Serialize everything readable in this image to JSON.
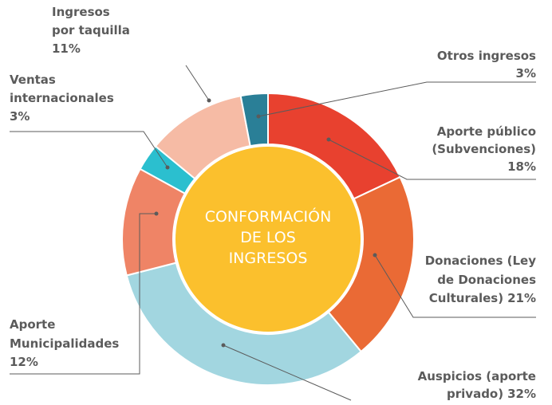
{
  "chart_data": {
    "type": "donut",
    "title": "CONFORMACIÓN DE LOS INGRESOS",
    "categories": [
      "Aporte público (Subvenciones)",
      "Donaciones (Ley de Donaciones Culturales)",
      "Auspicios (aporte privado)",
      "Aporte Municipalidades",
      "Ventas internacionales",
      "Ingresos por taquilla",
      "Otros ingresos"
    ],
    "values": [
      18,
      21,
      32,
      12,
      3,
      11,
      3
    ],
    "value_labels": [
      "18%",
      "21%",
      "32%",
      "12%",
      "3%",
      "11%",
      "3%"
    ],
    "colors": [
      "#e8412f",
      "#ea6a35",
      "#a2d6e0",
      "#ef8466",
      "#2bbfcf",
      "#f6bba5",
      "#2a7f97"
    ],
    "center_color": "#fbc02d"
  }
}
